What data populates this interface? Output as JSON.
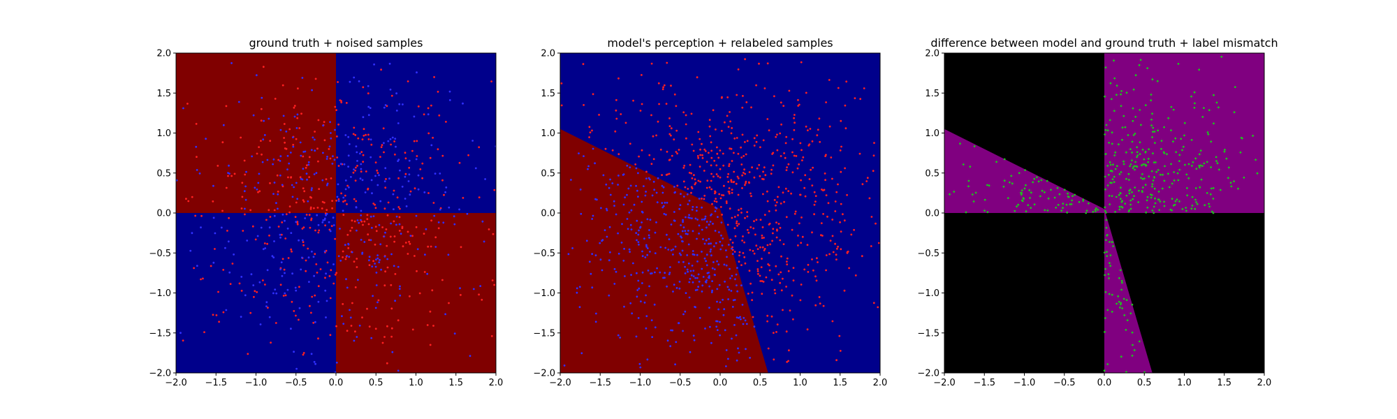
{
  "chart_data": [
    {
      "type": "scatter",
      "title": "ground truth + noised samples",
      "xlim": [
        -2,
        2
      ],
      "ylim": [
        -2,
        2
      ],
      "xticks": [
        "−2.0",
        "−1.5",
        "−1.0",
        "−0.5",
        "0.0",
        "0.5",
        "1.0",
        "1.5",
        "2.0"
      ],
      "yticks": [
        "−2.0",
        "−1.5",
        "−1.0",
        "−0.5",
        "0.0",
        "0.5",
        "1.0",
        "1.5",
        "2.0"
      ],
      "background": {
        "kind": "quadrants",
        "colors": {
          "top_left": "#800000",
          "top_right": "#00008b",
          "bottom_left": "#00008b",
          "bottom_right": "#800000"
        }
      },
      "series": [
        {
          "color": "#ff2020",
          "n": 420,
          "region": "mismatch",
          "seed": 11
        },
        {
          "color": "#3030ff",
          "n": 380,
          "region": "match",
          "seed": 23
        }
      ]
    },
    {
      "type": "scatter",
      "title": "model's perception + relabeled samples",
      "xlim": [
        -2,
        2
      ],
      "ylim": [
        -2,
        2
      ],
      "xticks": [
        "−2.0",
        "−1.5",
        "−1.0",
        "−0.5",
        "0.0",
        "0.5",
        "1.0",
        "1.5",
        "2.0"
      ],
      "yticks": [
        "−2.0",
        "−1.5",
        "−1.0",
        "−0.5",
        "0.0",
        "0.5",
        "1.0",
        "1.5",
        "2.0"
      ],
      "background": {
        "kind": "polygon",
        "base": "#00008b",
        "fill": "#800000",
        "vertices": [
          [
            -2,
            1.05
          ],
          [
            0.0,
            0.05
          ],
          [
            0.6,
            -2
          ],
          [
            -2,
            -2
          ]
        ]
      },
      "series": [
        {
          "color": "#ff2020",
          "n": 560,
          "region": "blue-area",
          "seed": 37
        },
        {
          "color": "#3030ff",
          "n": 420,
          "region": "red-area",
          "seed": 41
        }
      ]
    },
    {
      "type": "scatter",
      "title": "difference between model and ground truth + label mismatch",
      "xlim": [
        -2,
        2
      ],
      "ylim": [
        -2,
        2
      ],
      "xticks": [
        "−2.0",
        "−1.5",
        "−1.0",
        "−0.5",
        "0.0",
        "0.5",
        "1.0",
        "1.5",
        "2.0"
      ],
      "yticks": [
        "−2.0",
        "−1.5",
        "−1.0",
        "−0.5",
        "0.0",
        "0.5",
        "1.0",
        "1.5",
        "2.0"
      ],
      "background": {
        "kind": "polygons",
        "base": "#000000",
        "fill": "#800080",
        "shapes": [
          [
            [
              0,
              2
            ],
            [
              2,
              2
            ],
            [
              2,
              0
            ],
            [
              0,
              0
            ]
          ],
          [
            [
              -2,
              1.05
            ],
            [
              0.0,
              0.05
            ],
            [
              0.0,
              0
            ],
            [
              -2,
              0
            ]
          ],
          [
            [
              0.0,
              0.05
            ],
            [
              0.6,
              -2
            ],
            [
              0.0,
              -2
            ],
            [
              0.0,
              0
            ]
          ]
        ]
      },
      "series": [
        {
          "color": "#20c020",
          "n": 460,
          "region": "black-area",
          "seed": 53
        }
      ]
    }
  ]
}
